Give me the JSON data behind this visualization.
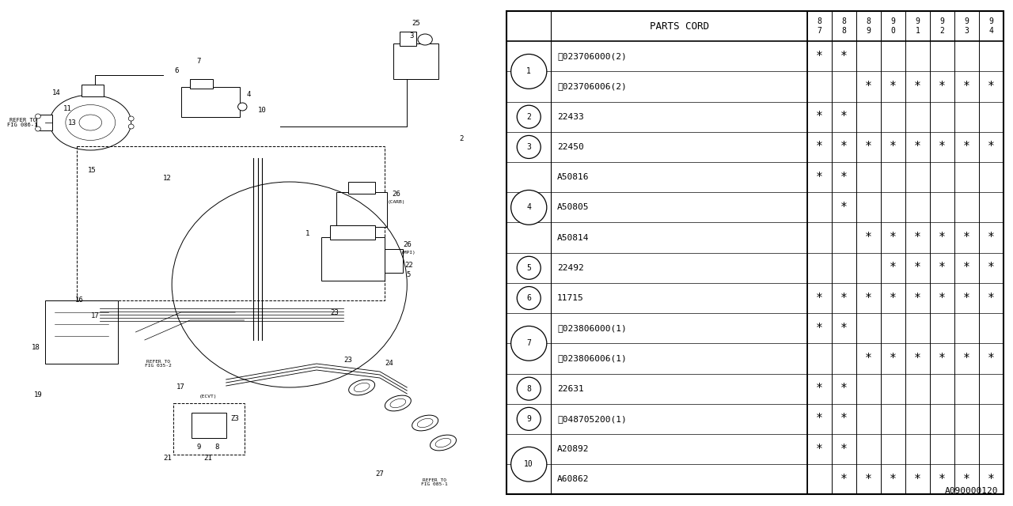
{
  "bg_color": "#ffffff",
  "col_header": "PARTS CORD",
  "year_cols": [
    "8\n7",
    "8\n8",
    "8\n9",
    "9\n0",
    "9\n1",
    "9\n2",
    "9\n3",
    "9\n4"
  ],
  "rows": [
    {
      "num": "1",
      "parts": [
        {
          "name": "ⓝ023706000(2)",
          "stars": [
            1,
            1,
            0,
            0,
            0,
            0,
            0,
            0
          ]
        },
        {
          "name": "ⓝ023706006(2)",
          "stars": [
            0,
            0,
            1,
            1,
            1,
            1,
            1,
            1
          ]
        }
      ]
    },
    {
      "num": "2",
      "parts": [
        {
          "name": "22433",
          "stars": [
            1,
            1,
            0,
            0,
            0,
            0,
            0,
            0
          ]
        }
      ]
    },
    {
      "num": "3",
      "parts": [
        {
          "name": "22450",
          "stars": [
            1,
            1,
            1,
            1,
            1,
            1,
            1,
            1
          ]
        }
      ]
    },
    {
      "num": "4",
      "parts": [
        {
          "name": "A50816",
          "stars": [
            1,
            1,
            0,
            0,
            0,
            0,
            0,
            0
          ]
        },
        {
          "name": "A50805",
          "stars": [
            0,
            1,
            0,
            0,
            0,
            0,
            0,
            0
          ]
        },
        {
          "name": "A50814",
          "stars": [
            0,
            0,
            1,
            1,
            1,
            1,
            1,
            1
          ]
        }
      ]
    },
    {
      "num": "5",
      "parts": [
        {
          "name": "22492",
          "stars": [
            0,
            0,
            0,
            1,
            1,
            1,
            1,
            1
          ]
        }
      ]
    },
    {
      "num": "6",
      "parts": [
        {
          "name": "11715",
          "stars": [
            1,
            1,
            1,
            1,
            1,
            1,
            1,
            1
          ]
        }
      ]
    },
    {
      "num": "7",
      "parts": [
        {
          "name": "ⓝ023806000(1)",
          "stars": [
            1,
            1,
            0,
            0,
            0,
            0,
            0,
            0
          ]
        },
        {
          "name": "ⓝ023806006(1)",
          "stars": [
            0,
            0,
            1,
            1,
            1,
            1,
            1,
            1
          ]
        }
      ]
    },
    {
      "num": "8",
      "parts": [
        {
          "name": "22631",
          "stars": [
            1,
            1,
            0,
            0,
            0,
            0,
            0,
            0
          ]
        }
      ]
    },
    {
      "num": "9",
      "parts": [
        {
          "name": "Ⓢ048705200(1)",
          "stars": [
            1,
            1,
            0,
            0,
            0,
            0,
            0,
            0
          ]
        }
      ]
    },
    {
      "num": "10",
      "parts": [
        {
          "name": "A20892",
          "stars": [
            1,
            1,
            0,
            0,
            0,
            0,
            0,
            0
          ]
        },
        {
          "name": "A60862",
          "stars": [
            0,
            1,
            1,
            1,
            1,
            1,
            1,
            1
          ]
        }
      ]
    }
  ],
  "footnote": "A090000120",
  "line_color": "#000000",
  "text_color": "#000000",
  "font_size": 8.5,
  "header_font_size": 9
}
